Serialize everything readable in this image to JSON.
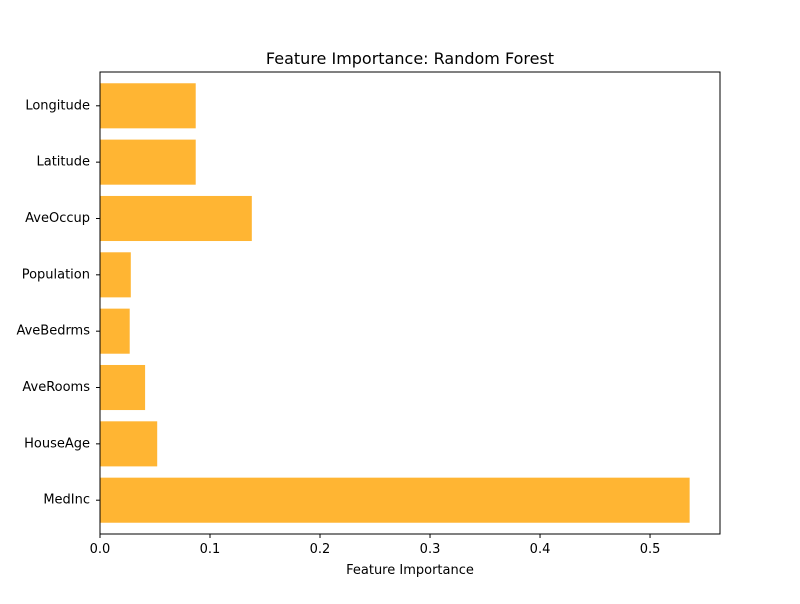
{
  "chart_data": {
    "type": "bar",
    "orientation": "horizontal",
    "title": "Feature Importance: Random Forest",
    "xlabel": "Feature Importance",
    "ylabel": "",
    "categories": [
      "MedInc",
      "HouseAge",
      "AveRooms",
      "AveBedrms",
      "Population",
      "AveOccup",
      "Latitude",
      "Longitude"
    ],
    "values": [
      0.536,
      0.052,
      0.041,
      0.027,
      0.028,
      0.138,
      0.087,
      0.087
    ],
    "xlim": [
      0,
      0.5636
    ],
    "xticks": [
      0.0,
      0.1,
      0.2,
      0.3,
      0.4,
      0.5
    ],
    "xtick_labels": [
      "0.0",
      "0.1",
      "0.2",
      "0.3",
      "0.4",
      "0.5"
    ],
    "bar_color": "#ffb533",
    "grid": false,
    "legend": "none"
  }
}
